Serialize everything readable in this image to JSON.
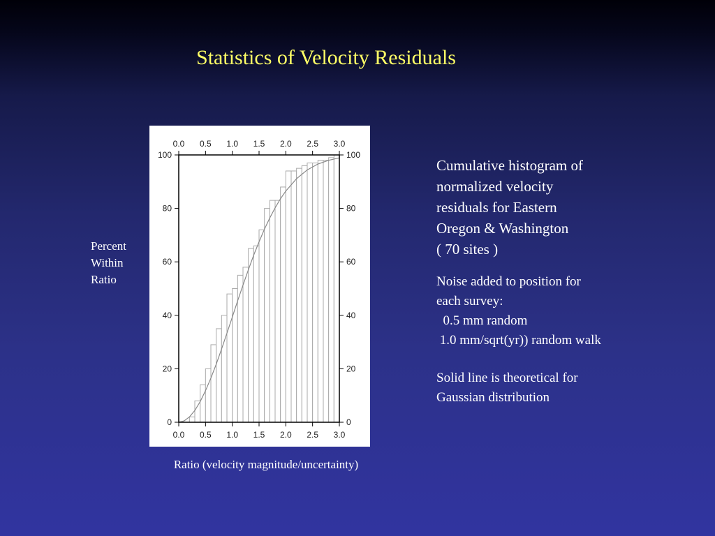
{
  "slide": {
    "title": "Statistics of Velocity Residuals"
  },
  "y_title_lines": [
    "Percent",
    "Within",
    "Ratio"
  ],
  "x_title": "Ratio (velocity magnitude/uncertainty)",
  "description": {
    "caption_lines": [
      "Cumulative histogram of",
      "normalized velocity",
      "residuals for Eastern",
      "Oregon & Washington",
      "( 70 sites )"
    ],
    "noise_lines": [
      "Noise added to position for",
      "each survey:",
      "  0.5 mm random",
      " 1.0 mm/sqrt(yr)) random walk"
    ],
    "solid_line_note_lines": [
      "Solid line is theoretical for",
      "Gaussian distribution"
    ]
  },
  "chart_data": {
    "type": "bar",
    "description": "cumulative histogram",
    "x": [
      0.05,
      0.15,
      0.25,
      0.35,
      0.45,
      0.55,
      0.65,
      0.75,
      0.85,
      0.95,
      1.05,
      1.15,
      1.25,
      1.35,
      1.45,
      1.55,
      1.65,
      1.75,
      1.85,
      1.95,
      2.05,
      2.15,
      2.25,
      2.35,
      2.45,
      2.55,
      2.65,
      2.75,
      2.85,
      2.95
    ],
    "values": [
      0,
      0,
      2,
      8,
      14,
      20,
      29,
      35,
      40,
      48,
      50,
      55,
      58,
      65,
      66,
      72,
      80,
      83,
      83,
      88,
      94,
      94,
      95,
      96,
      97,
      97,
      98,
      98,
      99,
      100
    ],
    "reference_curve": {
      "label": "theoretical Gaussian (solid line)",
      "x": [
        0.0,
        0.1,
        0.2,
        0.3,
        0.4,
        0.5,
        0.6,
        0.7,
        0.8,
        0.9,
        1.0,
        1.1,
        1.2,
        1.3,
        1.4,
        1.5,
        1.6,
        1.7,
        1.8,
        1.9,
        2.0,
        2.2,
        2.4,
        2.6,
        2.8,
        3.0
      ],
      "y": [
        0,
        0.5,
        2,
        4.4,
        7.7,
        11.8,
        16.5,
        21.7,
        27.4,
        33.3,
        39.3,
        45.4,
        51.3,
        57.0,
        62.5,
        67.5,
        72.2,
        76.4,
        80.2,
        83.6,
        86.5,
        91.1,
        94.4,
        96.6,
        98.0,
        98.9
      ]
    },
    "xlim": [
      0,
      3
    ],
    "ylim": [
      0,
      100
    ],
    "x_ticks": [
      0.0,
      0.5,
      1.0,
      1.5,
      2.0,
      2.5,
      3.0
    ],
    "x_tick_labels": [
      "0.0",
      "0.5",
      "1.0",
      "1.5",
      "2.0",
      "2.5",
      "3.0"
    ],
    "y_ticks": [
      0,
      20,
      40,
      60,
      80,
      100
    ],
    "y_tick_labels": [
      "0",
      "20",
      "40",
      "60",
      "80",
      "100"
    ],
    "grid": false,
    "bar_fill": "#ffffff",
    "bar_stroke": "#aaaaaa",
    "curve_color": "#888888"
  },
  "colors": {
    "title": "#ffff66",
    "text": "#ffffff"
  }
}
